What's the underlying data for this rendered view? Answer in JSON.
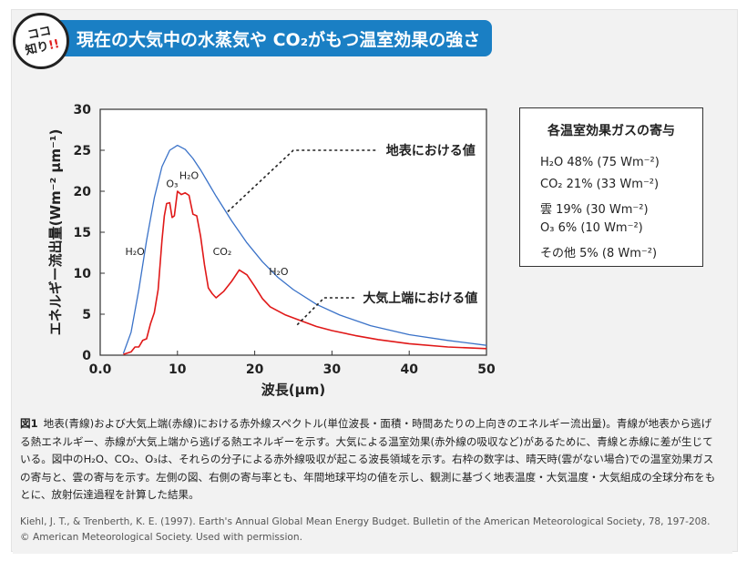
{
  "badge": {
    "line1": "ココ",
    "line2": "知り",
    "excl": "!!"
  },
  "banner": {
    "title": "現在の大気中の水蒸気や CO₂がもつ温室効果の強さ"
  },
  "chart_data": {
    "type": "line",
    "xlabel": "波長(μm)",
    "ylabel": "エネルギー流出量(Wm⁻² μm⁻¹)",
    "xlim": [
      0,
      50
    ],
    "ylim": [
      0,
      30
    ],
    "xticks": [
      "0.0",
      "10",
      "20",
      "30",
      "40",
      "50"
    ],
    "yticks": [
      "0",
      "5",
      "10",
      "15",
      "20",
      "25",
      "30"
    ],
    "series": [
      {
        "name": "地表における値",
        "color": "#3a72c8",
        "x": [
          3,
          4,
          5,
          6,
          7,
          8,
          9,
          10,
          11,
          12,
          13,
          14,
          15,
          17,
          19,
          21,
          23,
          25,
          28,
          31,
          35,
          40,
          45,
          50
        ],
        "y": [
          0.2,
          2.8,
          8.0,
          14.0,
          19.2,
          23.0,
          25.0,
          25.6,
          25.1,
          24.0,
          22.6,
          21.0,
          19.4,
          16.4,
          13.7,
          11.4,
          9.5,
          8.0,
          6.2,
          4.9,
          3.6,
          2.5,
          1.8,
          1.2
        ]
      },
      {
        "name": "大気上端における値",
        "color": "#e01818",
        "x": [
          3,
          4,
          4.5,
          5,
          5.5,
          6,
          6.5,
          7,
          7.5,
          8,
          8.3,
          8.6,
          9,
          9.3,
          9.6,
          10,
          10.5,
          11,
          11.5,
          12,
          12.5,
          13,
          13.5,
          14,
          14.5,
          15,
          16,
          17,
          18,
          19,
          20,
          21,
          22,
          24,
          26,
          28,
          30,
          33,
          36,
          40,
          45,
          50
        ],
        "y": [
          0.1,
          0.4,
          1.0,
          1.0,
          1.8,
          2.0,
          3.8,
          5.2,
          8.0,
          14.0,
          17.0,
          18.5,
          18.6,
          16.8,
          17.0,
          20.0,
          19.6,
          19.8,
          19.5,
          17.2,
          17.0,
          14.5,
          11.0,
          8.2,
          7.5,
          7.0,
          7.8,
          9.0,
          10.4,
          9.8,
          8.4,
          6.9,
          5.9,
          4.9,
          4.2,
          3.5,
          3.0,
          2.4,
          1.9,
          1.4,
          1.0,
          0.8
        ]
      }
    ],
    "annotations": [
      {
        "text": "H₂O",
        "x": 4.5,
        "y": 12.2
      },
      {
        "text": "O₃",
        "x": 9.3,
        "y": 20.5
      },
      {
        "text": "H₂O",
        "x": 11.5,
        "y": 21.5
      },
      {
        "text": "CO₂",
        "x": 15.8,
        "y": 12.2
      },
      {
        "text": "H₂O",
        "x": 23.1,
        "y": 9.8
      }
    ],
    "labels": {
      "surface": "地表における値",
      "toa": "大気上端における値"
    }
  },
  "legend": {
    "title": "各温室効果ガスの寄与",
    "rows": [
      "H₂O  48% (75 Wm⁻²)",
      "CO₂  21% (33 Wm⁻²)",
      "雲    19% (30 Wm⁻²)",
      "O₃     6% (10 Wm⁻²)",
      "その他 5% (8 Wm⁻²)"
    ]
  },
  "caption": {
    "fig_label": "図1",
    "text": "地表(青線)および大気上端(赤線)における赤外線スペクトル(単位波長・面積・時間あたりの上向きのエネルギー流出量)。青線が地表から逃げる熱エネルギー、赤線が大気上端から逃げる熱エネルギーを示す。大気による温室効果(赤外線の吸収など)があるために、青線と赤線に差が生じている。図中のH₂O、CO₂、O₃は、それらの分子による赤外線吸収が起こる波長領域を示す。右枠の数字は、晴天時(雲がない場合)での温室効果ガスの寄与と、雲の寄与を示す。左側の図、右側の寄与率とも、年間地球平均の値を示し、観測に基づく地表温度・大気温度・大気組成の全球分布をもとに、放射伝達過程を計算した結果。",
    "credit": "Kiehl, J. T., & Trenberth, K. E. (1997). Earth's Annual Global Mean Energy Budget. Bulletin of the American Meteorological Society, 78, 197-208. © American Meteorological Society. Used with permission."
  }
}
